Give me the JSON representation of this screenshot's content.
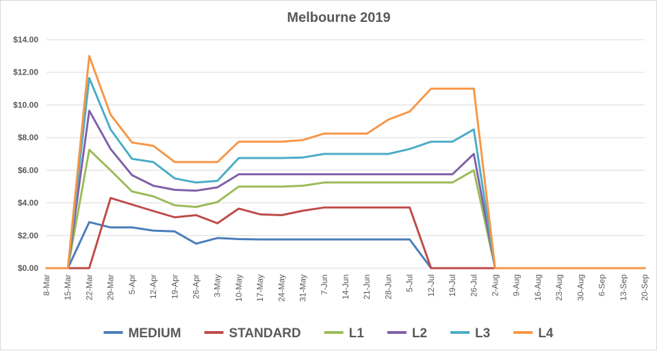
{
  "chart_data": {
    "type": "line",
    "title": "Melbourne 2019",
    "xlabel": "",
    "ylabel": "",
    "ylim": [
      0,
      14
    ],
    "yticks": [
      0,
      2,
      4,
      6,
      8,
      10,
      12,
      14
    ],
    "ytick_labels": [
      "$0.00",
      "$2.00",
      "$4.00",
      "$6.00",
      "$8.00",
      "$10.00",
      "$12.00",
      "$14.00"
    ],
    "grid": true,
    "legend_position": "bottom",
    "categories": [
      "8-Mar",
      "15-Mar",
      "22-Mar",
      "29-Mar",
      "5-Apr",
      "12-Apr",
      "19-Apr",
      "26-Apr",
      "3-May",
      "10-May",
      "17-May",
      "24-May",
      "31-May",
      "7-Jun",
      "14-Jun",
      "21-Jun",
      "28-Jun",
      "5-Jul",
      "12-Jul",
      "19-Jul",
      "26-Jul",
      "2-Aug",
      "9-Aug",
      "16-Aug",
      "23-Aug",
      "30-Aug",
      "6-Sep",
      "13-Sep",
      "20-Sep"
    ],
    "series": [
      {
        "name": "MEDIUM",
        "color": "#4a7ebb",
        "values": [
          0,
          0,
          2.82,
          2.5,
          2.5,
          2.3,
          2.25,
          1.5,
          1.85,
          1.78,
          1.76,
          1.76,
          1.76,
          1.76,
          1.76,
          1.76,
          1.76,
          1.76,
          0,
          0,
          0,
          0,
          0,
          0,
          0,
          0,
          0,
          0,
          0
        ]
      },
      {
        "name": "STANDARD",
        "color": "#be4b48",
        "values": [
          0,
          0,
          0,
          4.3,
          3.9,
          3.5,
          3.12,
          3.25,
          2.75,
          3.65,
          3.3,
          3.25,
          3.52,
          3.72,
          3.72,
          3.72,
          3.72,
          3.72,
          0,
          0,
          0,
          0,
          0,
          0,
          0,
          0,
          0,
          0,
          0
        ]
      },
      {
        "name": "L1",
        "color": "#9bbb59",
        "values": [
          0,
          0,
          7.25,
          6.0,
          4.7,
          4.4,
          3.85,
          3.75,
          4.05,
          5.0,
          5.0,
          5.0,
          5.05,
          5.25,
          5.25,
          5.25,
          5.25,
          5.25,
          5.25,
          5.25,
          6.0,
          0,
          0,
          0,
          0,
          0,
          0,
          0,
          0
        ]
      },
      {
        "name": "L2",
        "color": "#7f60a8",
        "values": [
          0,
          0,
          9.65,
          7.3,
          5.7,
          5.05,
          4.8,
          4.75,
          4.95,
          5.75,
          5.75,
          5.75,
          5.75,
          5.75,
          5.75,
          5.75,
          5.75,
          5.75,
          5.75,
          5.75,
          7.0,
          0,
          0,
          0,
          0,
          0,
          0,
          0,
          0
        ]
      },
      {
        "name": "L3",
        "color": "#4bacc6",
        "values": [
          0,
          0,
          11.65,
          8.5,
          6.7,
          6.5,
          5.5,
          5.25,
          5.35,
          6.75,
          6.75,
          6.75,
          6.78,
          7.0,
          7.0,
          7.0,
          7.0,
          7.3,
          7.75,
          7.75,
          8.5,
          0,
          0,
          0,
          0,
          0,
          0,
          0,
          0
        ]
      },
      {
        "name": "L4",
        "color": "#f79646",
        "values": [
          0,
          0,
          13.0,
          9.4,
          7.7,
          7.5,
          6.5,
          6.5,
          6.5,
          7.75,
          7.75,
          7.75,
          7.85,
          8.25,
          8.25,
          8.25,
          9.1,
          9.6,
          11.0,
          11.0,
          11.0,
          0,
          0,
          0,
          0,
          0,
          0,
          0,
          0
        ]
      }
    ]
  }
}
